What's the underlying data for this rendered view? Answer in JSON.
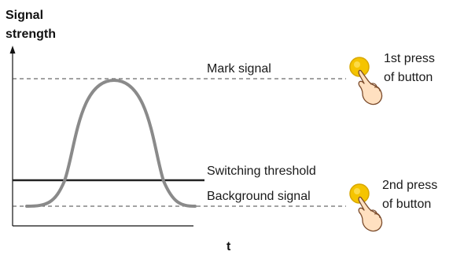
{
  "axis": {
    "y_label_line1": "Signal",
    "y_label_line2": "strength",
    "x_label": "t"
  },
  "lines": {
    "mark_signal": "Mark signal",
    "switching_threshold": "Switching threshold",
    "background_signal": "Background signal"
  },
  "buttons": {
    "first_press_line1": "1st press",
    "first_press_line2": "of button",
    "second_press_line1": "2nd press",
    "second_press_line2": "of button",
    "icon": "finger-press-button-icon"
  },
  "colors": {
    "curve": "#8a8a8a",
    "threshold": "#222222",
    "dashed": "#444444",
    "button_fill": "#f5c400",
    "button_ring": "#d9a800",
    "hand_fill": "#ffe0c0",
    "hand_stroke": "#7a4a2a"
  }
}
